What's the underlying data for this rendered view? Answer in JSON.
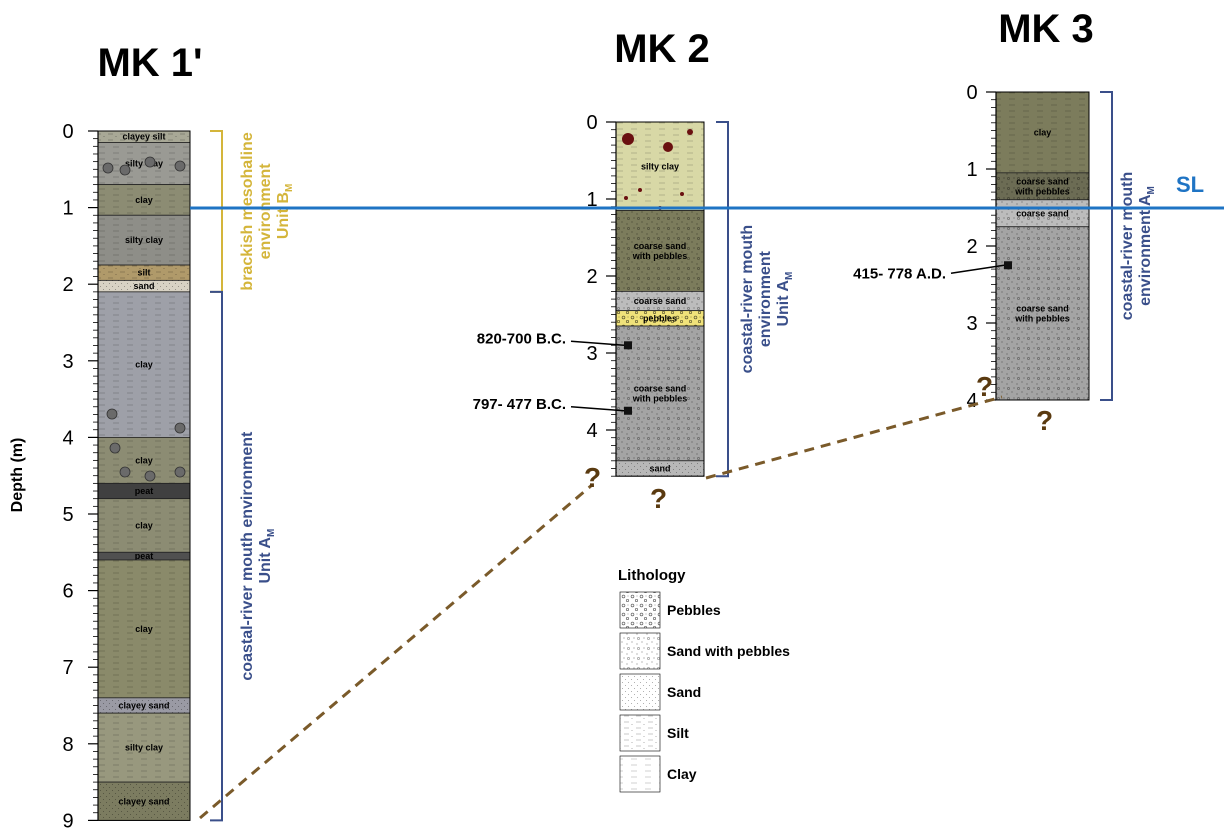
{
  "colors": {
    "sea_level": "#1f74c4",
    "unit_b": "#d4b53a",
    "unit_a": "#3a4f8a",
    "correlation": "#7a5a2a",
    "clay": "#8c8c73",
    "silty_clay": "#b0b09a",
    "clay_mk3": "#7c7c5c",
    "coarse_sand": "#c0c0c0",
    "coarse_sand_pebbles": "#a4a4a4",
    "silt": "#b09a6a",
    "sand": "#d8d2c4",
    "peat": "#404040",
    "pebbles": "#f0e27a",
    "silty_clay_mk2": "#d8d8a6"
  },
  "axis": {
    "title": "Depth (m)"
  },
  "sea_level": {
    "label": "SL",
    "depth_mk1": 1.0
  },
  "legend": {
    "title": "Lithology",
    "items": [
      {
        "label": "Pebbles",
        "pattern": "pebbles"
      },
      {
        "label": "Sand with pebbles",
        "pattern": "sandpebbles"
      },
      {
        "label": "Sand",
        "pattern": "sand"
      },
      {
        "label": "Silt",
        "pattern": "silt"
      },
      {
        "label": "Clay",
        "pattern": "clay"
      }
    ]
  },
  "columns": [
    {
      "id": "mk1",
      "title": "MK 1'",
      "max_depth": 9,
      "ticks": [
        "0",
        "1",
        "2",
        "3",
        "4",
        "5",
        "6",
        "7",
        "8",
        "9"
      ],
      "layers": [
        {
          "top": 0.0,
          "bottom": 0.15,
          "label": "clayey silt",
          "fill": "#a8a896",
          "pattern": "silt"
        },
        {
          "top": 0.15,
          "bottom": 0.7,
          "label": "silty clay",
          "fill": "#9a9a94",
          "pattern": "clay"
        },
        {
          "top": 0.7,
          "bottom": 1.1,
          "label": "clay",
          "fill": "#8c8c73",
          "pattern": "clay"
        },
        {
          "top": 1.1,
          "bottom": 1.75,
          "label": "silty clay",
          "fill": "#8e8e88",
          "pattern": "clay"
        },
        {
          "top": 1.75,
          "bottom": 1.95,
          "label": "silt",
          "fill": "#b09a6a",
          "pattern": "silt"
        },
        {
          "top": 1.95,
          "bottom": 2.1,
          "label": "sand",
          "fill": "#d8d2c4",
          "pattern": "sand"
        },
        {
          "top": 2.1,
          "bottom": 4.0,
          "label": "clay",
          "fill": "#9ea0a8",
          "pattern": "clay"
        },
        {
          "top": 4.0,
          "bottom": 4.6,
          "label": "clay",
          "fill": "#8c8c73",
          "pattern": "clay"
        },
        {
          "top": 4.6,
          "bottom": 4.8,
          "label": "peat",
          "fill": "#404040",
          "pattern": "none"
        },
        {
          "top": 4.8,
          "bottom": 5.5,
          "label": "clay",
          "fill": "#8c8c73",
          "pattern": "clay"
        },
        {
          "top": 5.5,
          "bottom": 5.6,
          "label": "peat",
          "fill": "#505050",
          "pattern": "none"
        },
        {
          "top": 5.6,
          "bottom": 7.4,
          "label": "clay",
          "fill": "#8a8a6a",
          "pattern": "clay"
        },
        {
          "top": 7.4,
          "bottom": 7.6,
          "label": "clayey sand",
          "fill": "#9a9aa4",
          "pattern": "sand"
        },
        {
          "top": 7.6,
          "bottom": 8.5,
          "label": "silty clay",
          "fill": "#98987e",
          "pattern": "clay"
        },
        {
          "top": 8.5,
          "bottom": 9.0,
          "label": "clayey sand",
          "fill": "#7c7c60",
          "pattern": "sand"
        }
      ],
      "envs": [
        {
          "top": 0.0,
          "bottom": 2.1,
          "lines": [
            "brackish mesohaline",
            "environment",
            "Unit B"
          ],
          "sub": "M",
          "unit": "unit_b"
        },
        {
          "top": 2.1,
          "bottom": 9.0,
          "lines": [
            "coastal-river mouth environment",
            "Unit A"
          ],
          "sub": "M",
          "unit": "unit_a"
        }
      ]
    },
    {
      "id": "mk2",
      "title": "MK 2",
      "max_depth": 4.6,
      "ticks": [
        "0",
        "1",
        "2",
        "3",
        "4"
      ],
      "layers": [
        {
          "top": 0.0,
          "bottom": 1.15,
          "label": "silty clay",
          "fill": "#d8d8a6",
          "pattern": "clay"
        },
        {
          "top": 1.15,
          "bottom": 2.2,
          "label": "coarse sand|with pebbles",
          "fill": "#7c7c5c",
          "pattern": "sandpebbles"
        },
        {
          "top": 2.2,
          "bottom": 2.45,
          "label": "coarse sand",
          "fill": "#bcbcbc",
          "pattern": "sandpebbles"
        },
        {
          "top": 2.45,
          "bottom": 2.65,
          "label": "pebbles",
          "fill": "#f0e27a",
          "pattern": "pebbles"
        },
        {
          "top": 2.65,
          "bottom": 4.4,
          "label": "coarse sand|with pebbles",
          "fill": "#a4a4a4",
          "pattern": "sandpebbles"
        },
        {
          "top": 4.4,
          "bottom": 4.6,
          "label": "sand",
          "fill": "#b8b8b8",
          "pattern": "sand"
        }
      ],
      "envs": [
        {
          "top": 0.0,
          "bottom": 4.6,
          "lines": [
            "coastal-river mouth",
            "environment",
            "Unit A"
          ],
          "sub": "M",
          "unit": "unit_a"
        }
      ],
      "dates": [
        {
          "depth": 2.9,
          "label": "820-700 B.C."
        },
        {
          "depth": 3.75,
          "label": "797- 477 B.C."
        }
      ]
    },
    {
      "id": "mk3",
      "title": "MK 3",
      "max_depth": 4.0,
      "ticks": [
        "0",
        "1",
        "2",
        "3",
        "4"
      ],
      "layers": [
        {
          "top": 0.0,
          "bottom": 1.05,
          "label": "clay",
          "fill": "#7c7c5c",
          "pattern": "clay"
        },
        {
          "top": 1.05,
          "bottom": 1.4,
          "label": "coarse sand|with pebbles",
          "fill": "#6c6c54",
          "pattern": "sandpebbles"
        },
        {
          "top": 1.4,
          "bottom": 1.75,
          "label": "coarse sand",
          "fill": "#bcbcbc",
          "pattern": "sandpebbles"
        },
        {
          "top": 1.75,
          "bottom": 4.0,
          "label": "coarse sand|with pebbles",
          "fill": "#a4a4a4",
          "pattern": "sandpebbles"
        }
      ],
      "envs": [
        {
          "top": 0.0,
          "bottom": 4.0,
          "lines": [
            "coastal-river mouth",
            "environment A"
          ],
          "sub": "M",
          "unit": "unit_a"
        }
      ],
      "dates": [
        {
          "depth": 2.25,
          "label": "415- 778 A.D."
        }
      ]
    }
  ],
  "unknowns": [
    "?",
    "?",
    "?",
    "?"
  ]
}
